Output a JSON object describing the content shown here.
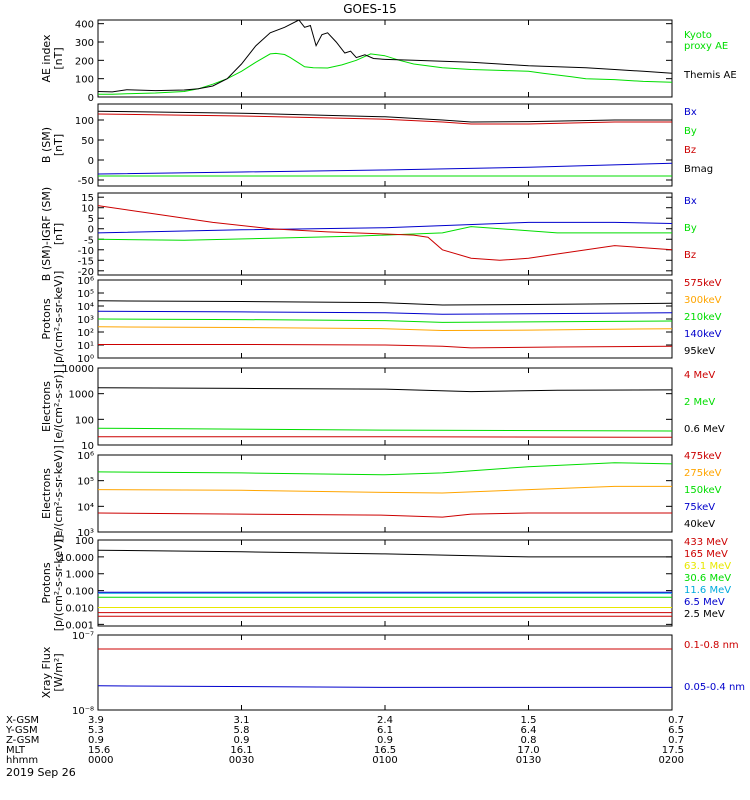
{
  "figure": {
    "title": "GOES-15",
    "date": "2019 Sep 26"
  },
  "colors": {
    "black": "#000000",
    "red": "#cc0000",
    "green": "#00dd00",
    "blue": "#0000cc",
    "orange": "#ffa500",
    "yellow": "#e8e800",
    "cyan": "#00aadd",
    "purple": "#aa00aa"
  },
  "time_axis": {
    "rows": [
      {
        "label": "X-GSM",
        "values": [
          "3.9",
          "3.1",
          "2.4",
          "1.5",
          "0.7"
        ]
      },
      {
        "label": "Y-GSM",
        "values": [
          "5.3",
          "5.8",
          "6.1",
          "6.4",
          "6.5"
        ]
      },
      {
        "label": "Z-GSM",
        "values": [
          "0.9",
          "0.9",
          "0.9",
          "0.8",
          "0.7"
        ]
      },
      {
        "label": "MLT",
        "values": [
          "15.6",
          "16.1",
          "16.5",
          "17.0",
          "17.5"
        ]
      },
      {
        "label": "hhmm",
        "values": [
          "0000",
          "0030",
          "0100",
          "0130",
          "0200"
        ]
      }
    ]
  },
  "chart_data": [
    {
      "type": "line",
      "ylabel": [
        "AE index",
        "[nT]"
      ],
      "ylim": [
        0,
        420
      ],
      "yticks": [
        0,
        100,
        200,
        300,
        400
      ],
      "ytick_labels": [
        "0",
        "100",
        "200",
        "300",
        "400"
      ],
      "series": [
        {
          "name": "Kyoto\nproxy AE",
          "color": "green",
          "x": [
            0,
            0.05,
            0.1,
            0.2,
            0.3,
            0.35,
            0.4,
            0.45,
            0.5,
            0.55,
            0.6,
            0.62,
            0.65,
            0.67,
            0.7,
            0.72,
            0.75,
            0.8,
            0.85,
            0.9,
            0.95,
            1
          ],
          "y": [
            15,
            15,
            18,
            22,
            30,
            45,
            70,
            100,
            140,
            190,
            235,
            238,
            232,
            215,
            185,
            165,
            160,
            158,
            175,
            200,
            235,
            225
          ]
        },
        {
          "name": "",
          "color": "green",
          "x": [
            1,
            1.05,
            1.1,
            1.2,
            1.3,
            1.4,
            1.5,
            1.55,
            1.6,
            1.65,
            1.7,
            1.8,
            1.9,
            2
          ],
          "y": [
            225,
            200,
            180,
            160,
            150,
            145,
            140,
            130,
            120,
            110,
            100,
            95,
            85,
            80
          ]
        },
        {
          "name": "Themis AE",
          "color": "black",
          "x": [
            0,
            0.05,
            0.1,
            0.2,
            0.3,
            0.35,
            0.4,
            0.45,
            0.5,
            0.55,
            0.6,
            0.65,
            0.7,
            0.72,
            0.74,
            0.76,
            0.78,
            0.8,
            0.83,
            0.86,
            0.88,
            0.9,
            0.93,
            0.96,
            1
          ],
          "y": [
            30,
            28,
            40,
            35,
            38,
            45,
            60,
            100,
            180,
            280,
            350,
            380,
            420,
            380,
            390,
            280,
            340,
            350,
            300,
            240,
            250,
            215,
            230,
            210,
            205
          ]
        },
        {
          "name": "",
          "color": "black",
          "x": [
            1,
            1.1,
            1.2,
            1.3,
            1.4,
            1.5,
            1.6,
            1.7,
            1.8,
            1.9,
            2
          ],
          "y": [
            205,
            200,
            195,
            190,
            180,
            170,
            165,
            160,
            150,
            140,
            130
          ]
        }
      ]
    },
    {
      "type": "line",
      "ylabel": [
        "B (SM)",
        "[nT]"
      ],
      "ylim": [
        -65,
        140
      ],
      "yticks": [
        -50,
        0,
        50,
        100
      ],
      "ytick_labels": [
        "-50",
        "0",
        "50",
        "100"
      ],
      "series": [
        {
          "name": "Bx",
          "color": "blue",
          "x": [
            0,
            0.5,
            1,
            1.5,
            2
          ],
          "y": [
            -35,
            -30,
            -25,
            -18,
            -8
          ]
        },
        {
          "name": "By",
          "color": "green",
          "x": [
            0,
            0.5,
            1,
            1.5,
            2
          ],
          "y": [
            -40,
            -40,
            -40,
            -40,
            -40
          ]
        },
        {
          "name": "Bz",
          "color": "red",
          "x": [
            0,
            0.5,
            1,
            1.2,
            1.3,
            1.5,
            1.8,
            2
          ],
          "y": [
            115,
            110,
            102,
            95,
            90,
            90,
            95,
            95
          ]
        },
        {
          "name": "Bmag",
          "color": "black",
          "x": [
            0,
            0.5,
            1,
            1.2,
            1.3,
            1.5,
            1.8,
            2
          ],
          "y": [
            122,
            117,
            108,
            100,
            95,
            96,
            100,
            100
          ]
        }
      ]
    },
    {
      "type": "line",
      "ylabel": [
        "B (SM)-IGRF (SM)",
        "[nT]"
      ],
      "ylim": [
        -22,
        17
      ],
      "yticks": [
        -20,
        -15,
        -10,
        -5,
        0,
        5,
        10,
        15
      ],
      "ytick_labels": [
        "-20",
        "-15",
        "-10",
        "-5",
        "0",
        "5",
        "10",
        "15"
      ],
      "series": [
        {
          "name": "Bx",
          "color": "blue",
          "x": [
            0,
            0.5,
            1,
            1.2,
            1.5,
            1.8,
            2
          ],
          "y": [
            -2,
            -0.5,
            0.5,
            1.5,
            3,
            3,
            2.5
          ]
        },
        {
          "name": "By",
          "color": "green",
          "x": [
            0,
            0.3,
            0.6,
            0.9,
            1.1,
            1.2,
            1.3,
            1.6,
            2
          ],
          "y": [
            -5,
            -5.5,
            -4.5,
            -3.5,
            -2.5,
            -2,
            1,
            -2,
            -2
          ]
        },
        {
          "name": "Bz",
          "color": "red",
          "x": [
            0,
            0.2,
            0.4,
            0.6,
            0.8,
            1,
            1.1,
            1.15,
            1.2,
            1.3,
            1.4,
            1.5,
            1.6,
            1.8,
            2
          ],
          "y": [
            11,
            7,
            3,
            0,
            -1.5,
            -2.5,
            -3,
            -4,
            -10,
            -14,
            -15,
            -14,
            -12,
            -8,
            -10
          ]
        }
      ]
    },
    {
      "type": "line",
      "log": true,
      "ylabel": [
        "Protons",
        "[p/(cm²-s-sr-keV)]"
      ],
      "ylim": [
        1,
        1000000.0
      ],
      "yticks": [
        1,
        10,
        100,
        1000,
        10000,
        100000,
        1000000
      ],
      "ytick_labels": [
        "10⁰",
        "10¹",
        "10²",
        "10³",
        "10⁴",
        "10⁵",
        "10⁶"
      ],
      "series": [
        {
          "name": "575keV",
          "color": "red",
          "x": [
            0,
            0.5,
            1,
            1.2,
            1.3,
            1.6,
            2
          ],
          "y": [
            11,
            11,
            10,
            8,
            6,
            7,
            8
          ]
        },
        {
          "name": "300keV",
          "color": "orange",
          "x": [
            0,
            0.5,
            1,
            1.2,
            1.5,
            2
          ],
          "y": [
            250,
            220,
            180,
            130,
            140,
            180
          ]
        },
        {
          "name": "210keV",
          "color": "green",
          "x": [
            0,
            0.5,
            1,
            1.2,
            1.5,
            2
          ],
          "y": [
            1000,
            900,
            750,
            550,
            600,
            700
          ]
        },
        {
          "name": "140keV",
          "color": "blue",
          "x": [
            0,
            0.5,
            1,
            1.2,
            1.5,
            2
          ],
          "y": [
            4000,
            3500,
            3000,
            2300,
            2500,
            3000
          ]
        },
        {
          "name": "95keV",
          "color": "black",
          "x": [
            0,
            0.5,
            1,
            1.2,
            1.5,
            2
          ],
          "y": [
            25000,
            22000,
            18000,
            12000,
            13000,
            16000
          ]
        }
      ]
    },
    {
      "type": "line",
      "log": true,
      "ylabel": [
        "Electrons",
        "[e/(cm²-s-sr)]"
      ],
      "ylim": [
        10,
        10000
      ],
      "yticks": [
        10,
        100,
        1000,
        10000
      ],
      "ytick_labels": [
        "10",
        "100",
        "1000",
        "10000"
      ],
      "series": [
        {
          "name": "4 MeV",
          "color": "red",
          "x": [
            0,
            1,
            2
          ],
          "y": [
            21,
            21,
            20
          ]
        },
        {
          "name": "2 MeV",
          "color": "green",
          "x": [
            0,
            1,
            2
          ],
          "y": [
            45,
            38,
            35
          ]
        },
        {
          "name": "0.6 MeV",
          "color": "black",
          "x": [
            0,
            0.5,
            1,
            1.3,
            1.6,
            2
          ],
          "y": [
            1700,
            1600,
            1500,
            1200,
            1350,
            1400
          ]
        }
      ]
    },
    {
      "type": "line",
      "log": true,
      "ylabel": [
        "Electrons",
        "[e/(cm²-s-sr-keV)]"
      ],
      "ylim": [
        1000,
        1000000
      ],
      "yticks": [
        1000,
        10000,
        100000,
        1000000
      ],
      "ytick_labels": [
        "10³",
        "10⁴",
        "10⁵",
        "10⁶"
      ],
      "series": [
        {
          "name": "475keV",
          "color": "red",
          "x": [
            0,
            0.5,
            1,
            1.2,
            1.3,
            1.5,
            2
          ],
          "y": [
            5500,
            5000,
            4500,
            3800,
            5000,
            5500,
            5500
          ]
        },
        {
          "name": "275keV",
          "color": "orange",
          "x": [
            0,
            0.5,
            1,
            1.2,
            1.5,
            1.8,
            2
          ],
          "y": [
            45000,
            42000,
            35000,
            33000,
            45000,
            60000,
            60000
          ]
        },
        {
          "name": "150keV",
          "color": "green",
          "x": [
            0,
            0.5,
            1,
            1.2,
            1.5,
            1.8,
            2
          ],
          "y": [
            220000,
            200000,
            170000,
            200000,
            350000,
            500000,
            450000
          ]
        },
        {
          "name": "75keV",
          "color": "blue",
          "x": [],
          "y": []
        },
        {
          "name": "40keV",
          "color": "black",
          "x": [],
          "y": []
        }
      ]
    },
    {
      "type": "line",
      "log": true,
      "ylabel": [
        "Protons",
        "[p/(cm²-s-sr-keV)]"
      ],
      "ylim": [
        0.0008,
        100
      ],
      "yticks": [
        0.001,
        0.01,
        0.1,
        1,
        10,
        100
      ],
      "ytick_labels": [
        "0.001",
        "0.010",
        "0.100",
        "1.000",
        "10.000",
        "100"
      ],
      "series": [
        {
          "name": "433 MeV",
          "color": "red",
          "x": [
            0,
            1,
            2
          ],
          "y": [
            0.003,
            0.003,
            0.003
          ]
        },
        {
          "name": "165 MeV",
          "color": "red",
          "x": [
            0,
            1,
            2
          ],
          "y": [
            0.005,
            0.005,
            0.005
          ]
        },
        {
          "name": "63.1 MeV",
          "color": "yellow",
          "x": [
            0,
            1,
            2
          ],
          "y": [
            0.01,
            0.01,
            0.01
          ]
        },
        {
          "name": "30.6 MeV",
          "color": "green",
          "x": [
            0,
            1,
            2
          ],
          "y": [
            0.04,
            0.04,
            0.04
          ]
        },
        {
          "name": "11.6 MeV",
          "color": "cyan",
          "x": [
            0,
            1,
            2
          ],
          "y": [
            0.07,
            0.07,
            0.07
          ]
        },
        {
          "name": "6.5 MeV",
          "color": "blue",
          "x": [
            0,
            1,
            2
          ],
          "y": [
            0.08,
            0.08,
            0.08
          ]
        },
        {
          "name": "2.5 MeV",
          "color": "black",
          "x": [
            0,
            0.5,
            1,
            1.5,
            2
          ],
          "y": [
            25,
            20,
            15,
            10,
            10
          ]
        }
      ]
    },
    {
      "type": "line",
      "log": true,
      "ylabel": [
        "Xray Flux",
        "[W/m²]"
      ],
      "ylim": [
        1e-08,
        1e-07
      ],
      "yticks": [
        1e-08,
        1e-07
      ],
      "ytick_labels": [
        "10⁻⁸",
        "10⁻⁷"
      ],
      "series": [
        {
          "name": "0.1-0.8 nm",
          "color": "red",
          "x": [
            0,
            1,
            2
          ],
          "y": [
            6.5e-08,
            6.5e-08,
            6.5e-08
          ]
        },
        {
          "name": "0.05-0.4 nm",
          "color": "blue",
          "x": [
            0,
            1,
            2
          ],
          "y": [
            2.1e-08,
            2e-08,
            2e-08
          ]
        }
      ]
    }
  ]
}
